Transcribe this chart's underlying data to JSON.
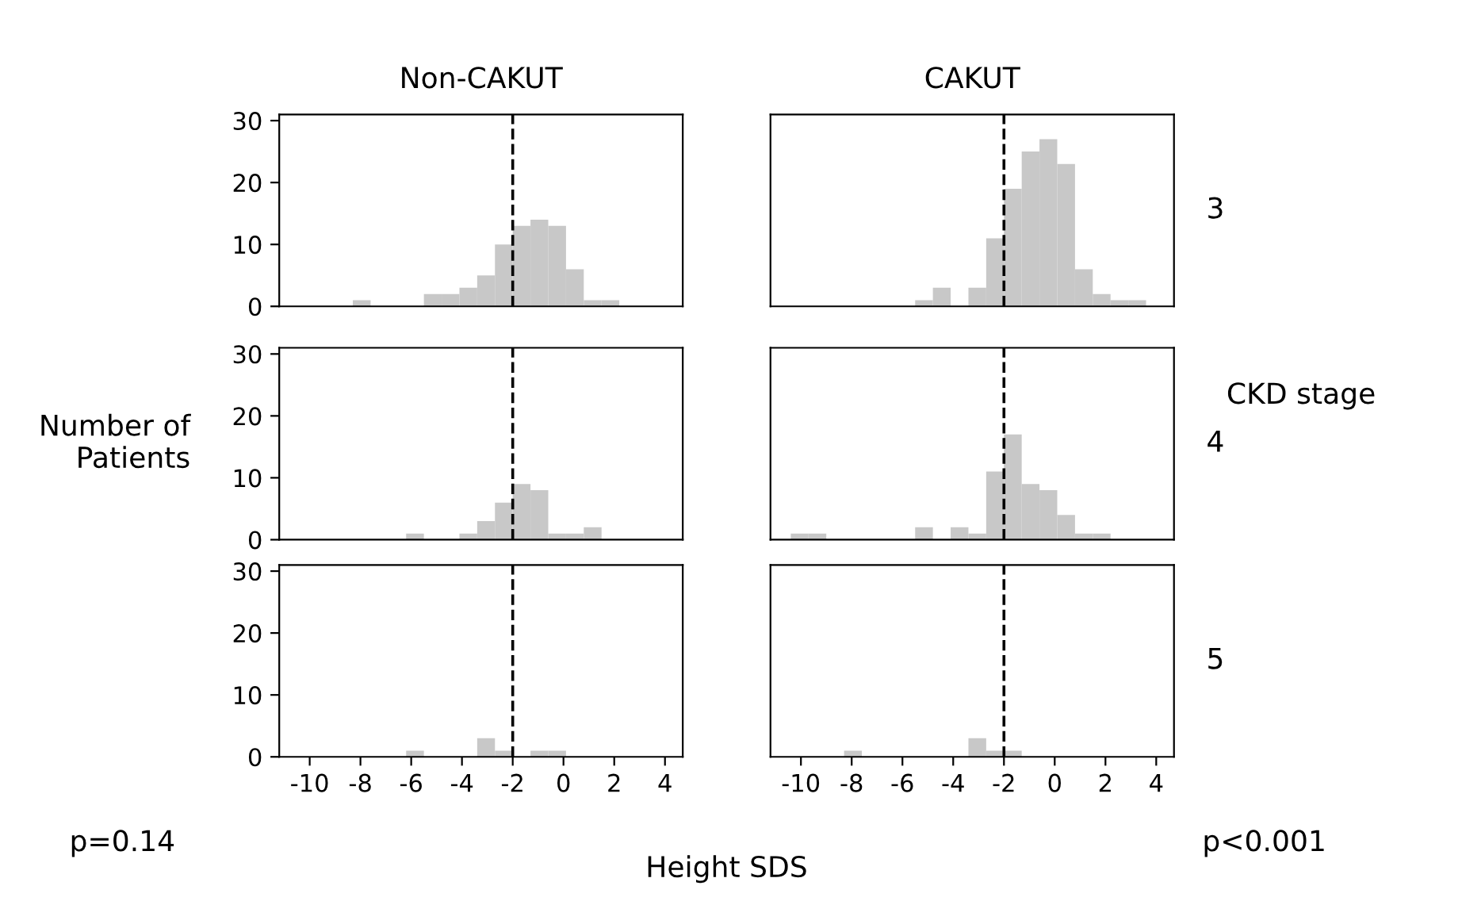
{
  "chart_data": [
    {
      "type": "histogram",
      "title": "Non-CAKUT",
      "bins": [
        -11.1,
        -10.4,
        -9.7,
        -9.0,
        -8.3,
        -7.6,
        -6.9,
        -6.2,
        -5.5,
        -4.8,
        -4.1,
        -3.4,
        -2.7,
        -2.0,
        -1.3,
        -0.6,
        0.1,
        0.8,
        1.5,
        2.2,
        2.9,
        3.6
      ],
      "values": [
        0,
        0,
        0,
        0,
        1,
        0,
        0,
        0,
        2,
        2,
        3,
        5,
        10,
        13,
        14,
        13,
        6,
        1,
        1,
        0,
        0
      ],
      "color": "#c8c8c8",
      "xlim": [
        -11.2,
        4.7
      ],
      "ylim": [
        0,
        31
      ],
      "xticks": [
        -10,
        -8,
        -6,
        -4,
        -2,
        0,
        2,
        4
      ],
      "yticks": [
        0,
        10,
        20,
        30
      ],
      "ref_lines": [
        {
          "axis": "x",
          "value": -2,
          "line_style": "dashed",
          "color": "#000000"
        }
      ],
      "tick_labels": "y"
    },
    {
      "type": "histogram",
      "title": "CAKUT",
      "annotations": [
        "3"
      ],
      "bins": [
        -11.1,
        -10.4,
        -9.7,
        -9.0,
        -8.3,
        -7.6,
        -6.9,
        -6.2,
        -5.5,
        -4.8,
        -4.1,
        -3.4,
        -2.7,
        -2.0,
        -1.3,
        -0.6,
        0.1,
        0.8,
        1.5,
        2.2,
        2.9,
        3.6
      ],
      "values": [
        0,
        0,
        0,
        0,
        0,
        0,
        0,
        0,
        1,
        3,
        0,
        3,
        11,
        19,
        25,
        27,
        23,
        6,
        2,
        1,
        1
      ],
      "color": "#c8c8c8",
      "xlim": [
        -11.2,
        4.7
      ],
      "ylim": [
        0,
        31
      ],
      "xticks": [
        -10,
        -8,
        -6,
        -4,
        -2,
        0,
        2,
        4
      ],
      "yticks": [
        0,
        10,
        20,
        30
      ],
      "ref_lines": [
        {
          "axis": "x",
          "value": -2,
          "line_style": "dashed",
          "color": "#000000"
        }
      ],
      "tick_labels": false
    },
    {
      "type": "histogram",
      "ylabel": "Number of\nPatients",
      "bins": [
        -11.1,
        -10.4,
        -9.7,
        -9.0,
        -8.3,
        -7.6,
        -6.9,
        -6.2,
        -5.5,
        -4.8,
        -4.1,
        -3.4,
        -2.7,
        -2.0,
        -1.3,
        -0.6,
        0.1,
        0.8,
        1.5,
        2.2,
        2.9,
        3.6
      ],
      "values": [
        0,
        0,
        0,
        0,
        0,
        0,
        0,
        1,
        0,
        0,
        1,
        3,
        6,
        9,
        8,
        1,
        1,
        2,
        0,
        0,
        0
      ],
      "color": "#c8c8c8",
      "xlim": [
        -11.2,
        4.7
      ],
      "ylim": [
        0,
        31
      ],
      "xticks": [
        -10,
        -8,
        -6,
        -4,
        -2,
        0,
        2,
        4
      ],
      "yticks": [
        0,
        10,
        20,
        30
      ],
      "ref_lines": [
        {
          "axis": "x",
          "value": -2,
          "line_style": "dashed",
          "color": "#000000"
        }
      ],
      "tick_labels": "y"
    },
    {
      "type": "histogram",
      "annotations": [
        "4",
        "CKD stage"
      ],
      "bins": [
        -11.1,
        -10.4,
        -9.7,
        -9.0,
        -8.3,
        -7.6,
        -6.9,
        -6.2,
        -5.5,
        -4.8,
        -4.1,
        -3.4,
        -2.7,
        -2.0,
        -1.3,
        -0.6,
        0.1,
        0.8,
        1.5,
        2.2,
        2.9,
        3.6
      ],
      "values": [
        0,
        1,
        1,
        0,
        0,
        0,
        0,
        0,
        2,
        0,
        2,
        1,
        11,
        17,
        9,
        8,
        4,
        1,
        1,
        0,
        0
      ],
      "color": "#c8c8c8",
      "xlim": [
        -11.2,
        4.7
      ],
      "ylim": [
        0,
        31
      ],
      "xticks": [
        -10,
        -8,
        -6,
        -4,
        -2,
        0,
        2,
        4
      ],
      "yticks": [
        0,
        10,
        20,
        30
      ],
      "ref_lines": [
        {
          "axis": "x",
          "value": -2,
          "line_style": "dashed",
          "color": "#000000"
        }
      ],
      "tick_labels": false
    },
    {
      "type": "histogram",
      "xlabel": "Height SDS",
      "annotations": [
        "p=0.14"
      ],
      "bins": [
        -11.1,
        -10.4,
        -9.7,
        -9.0,
        -8.3,
        -7.6,
        -6.9,
        -6.2,
        -5.5,
        -4.8,
        -4.1,
        -3.4,
        -2.7,
        -2.0,
        -1.3,
        -0.6,
        0.1,
        0.8,
        1.5,
        2.2,
        2.9,
        3.6
      ],
      "values": [
        0,
        0,
        0,
        0,
        0,
        0,
        0,
        1,
        0,
        0,
        0,
        3,
        1,
        0,
        1,
        1,
        0,
        0,
        0,
        0,
        0
      ],
      "color": "#c8c8c8",
      "xlim": [
        -11.2,
        4.7
      ],
      "ylim": [
        0,
        31
      ],
      "xticks": [
        -10,
        -8,
        -6,
        -4,
        -2,
        0,
        2,
        4
      ],
      "yticks": [
        0,
        10,
        20,
        30
      ],
      "ref_lines": [
        {
          "axis": "x",
          "value": -2,
          "line_style": "dashed",
          "color": "#000000"
        }
      ]
    },
    {
      "type": "histogram",
      "annotations": [
        "5",
        "p<0.001"
      ],
      "bins": [
        -11.1,
        -10.4,
        -9.7,
        -9.0,
        -8.3,
        -7.6,
        -6.9,
        -6.2,
        -5.5,
        -4.8,
        -4.1,
        -3.4,
        -2.7,
        -2.0,
        -1.3,
        -0.6,
        0.1,
        0.8,
        1.5,
        2.2,
        2.9,
        3.6
      ],
      "values": [
        0,
        0,
        0,
        0,
        1,
        0,
        0,
        0,
        0,
        0,
        0,
        3,
        1,
        1,
        0,
        0,
        0,
        0,
        0,
        0,
        0
      ],
      "color": "#c8c8c8",
      "xlim": [
        -11.2,
        4.7
      ],
      "ylim": [
        0,
        31
      ],
      "xticks": [
        -10,
        -8,
        -6,
        -4,
        -2,
        0,
        2,
        4
      ],
      "yticks": [
        0,
        10,
        20,
        30
      ],
      "ref_lines": [
        {
          "axis": "x",
          "value": -2,
          "line_style": "dashed",
          "color": "#000000"
        }
      ],
      "tick_labels": "x"
    }
  ]
}
